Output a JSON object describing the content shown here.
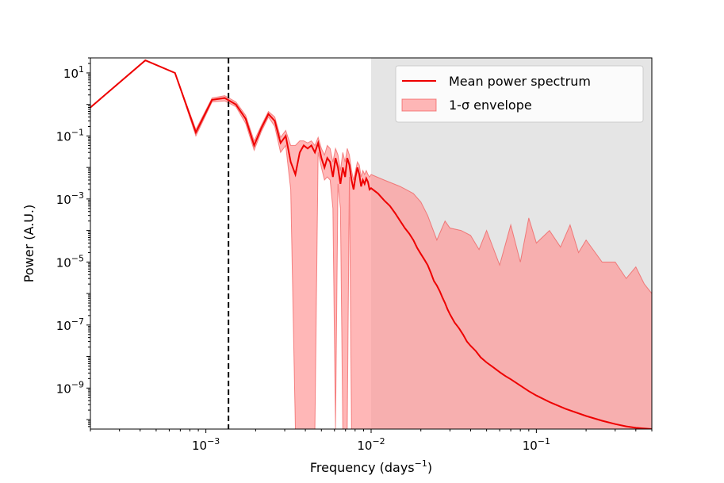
{
  "chart_data": {
    "type": "line",
    "xlabel": "Frequency (days",
    "xlabel_sup": "−1",
    "xlabel_end": ")",
    "ylabel": "Power (A.U.)",
    "xscale": "log",
    "yscale": "log",
    "xlim": [
      0.0002,
      0.5
    ],
    "ylim": [
      5e-11,
      30
    ],
    "grid": false,
    "legend_position": "top-right",
    "x_ticks": [
      {
        "value": 0.001,
        "base": "10",
        "exp": "−3"
      },
      {
        "value": 0.01,
        "base": "10",
        "exp": "−2"
      },
      {
        "value": 0.1,
        "base": "10",
        "exp": "−1"
      }
    ],
    "y_ticks": [
      {
        "value": 10,
        "base": "10",
        "exp": "1"
      },
      {
        "value": 0.1,
        "base": "10",
        "exp": "−1"
      },
      {
        "value": 0.001,
        "base": "10",
        "exp": "−3"
      },
      {
        "value": 1e-05,
        "base": "10",
        "exp": "−5"
      },
      {
        "value": 1e-07,
        "base": "10",
        "exp": "−7"
      },
      {
        "value": 1e-09,
        "base": "10",
        "exp": "−9"
      }
    ],
    "vline": {
      "x": 0.00137,
      "style": "dashed",
      "color": "#000000"
    },
    "shaded_region": {
      "x_start": 0.01,
      "x_end": 0.5,
      "color": "#e5e5e5"
    },
    "series": [
      {
        "name": "Mean power spectrum",
        "color": "#ee0000",
        "x": [
          0.0002,
          0.00043,
          0.00065,
          0.00087,
          0.00109,
          0.0013,
          0.00152,
          0.00174,
          0.00196,
          0.00217,
          0.00239,
          0.00261,
          0.00283,
          0.00304,
          0.00326,
          0.00348,
          0.0037,
          0.00391,
          0.00413,
          0.00435,
          0.00457,
          0.00478,
          0.005,
          0.00522,
          0.00543,
          0.00565,
          0.00587,
          0.00609,
          0.0063,
          0.00652,
          0.00674,
          0.00696,
          0.00717,
          0.00739,
          0.00761,
          0.00783,
          0.00804,
          0.00826,
          0.00848,
          0.0087,
          0.00891,
          0.00913,
          0.00935,
          0.00957,
          0.00978,
          0.01,
          0.011,
          0.012,
          0.013,
          0.014,
          0.015,
          0.016,
          0.017,
          0.018,
          0.019,
          0.02,
          0.021,
          0.022,
          0.023,
          0.024,
          0.025,
          0.026,
          0.027,
          0.028,
          0.029,
          0.03,
          0.032,
          0.034,
          0.036,
          0.038,
          0.04,
          0.043,
          0.046,
          0.05,
          0.055,
          0.06,
          0.065,
          0.07,
          0.08,
          0.09,
          0.1,
          0.12,
          0.15,
          0.2,
          0.25,
          0.3,
          0.35,
          0.4,
          0.45,
          0.5
        ],
        "y": [
          0.8,
          25,
          10,
          0.13,
          1.4,
          1.6,
          1.0,
          0.35,
          0.05,
          0.18,
          0.5,
          0.3,
          0.06,
          0.1,
          0.015,
          0.006,
          0.03,
          0.05,
          0.04,
          0.05,
          0.03,
          0.06,
          0.02,
          0.01,
          0.02,
          0.015,
          0.005,
          0.02,
          0.01,
          0.003,
          0.01,
          0.005,
          0.02,
          0.012,
          0.004,
          0.002,
          0.005,
          0.01,
          0.006,
          0.0025,
          0.004,
          0.003,
          0.0045,
          0.0035,
          0.002,
          0.0022,
          0.0015,
          0.0009,
          0.0006,
          0.00035,
          0.0002,
          0.00012,
          8e-05,
          5e-05,
          2.8e-05,
          1.8e-05,
          1.2e-05,
          8e-06,
          4.5e-06,
          2.5e-06,
          1.8e-06,
          1.2e-06,
          7.5e-07,
          5e-07,
          3.2e-07,
          2.2e-07,
          1.2e-07,
          8e-08,
          5e-08,
          3e-08,
          2.2e-08,
          1.5e-08,
          9.5e-09,
          6.5e-09,
          4.5e-09,
          3.2e-09,
          2.4e-09,
          1.9e-09,
          1.2e-09,
          8e-10,
          5.8e-10,
          3.6e-10,
          2.2e-10,
          1.3e-10,
          9.2e-11,
          7.2e-11,
          6.1e-11,
          5.5e-11,
          5.2e-11,
          5e-11
        ]
      },
      {
        "name": "1-σ envelope",
        "color": "#ff9999",
        "type": "area",
        "x": [
          0.0002,
          0.00043,
          0.00065,
          0.00087,
          0.00109,
          0.0013,
          0.00152,
          0.00174,
          0.00196,
          0.00217,
          0.00239,
          0.00261,
          0.00283,
          0.00304,
          0.00326,
          0.00348,
          0.0037,
          0.00391,
          0.00413,
          0.00435,
          0.00457,
          0.00478,
          0.005,
          0.00522,
          0.00543,
          0.00565,
          0.00587,
          0.00609,
          0.0063,
          0.00652,
          0.00674,
          0.00696,
          0.00717,
          0.00739,
          0.00761,
          0.00783,
          0.00804,
          0.00826,
          0.00848,
          0.0087,
          0.00891,
          0.00913,
          0.00935,
          0.00957,
          0.00978,
          0.01,
          0.012,
          0.015,
          0.018,
          0.02,
          0.022,
          0.025,
          0.028,
          0.03,
          0.035,
          0.04,
          0.045,
          0.05,
          0.06,
          0.07,
          0.08,
          0.09,
          0.1,
          0.12,
          0.14,
          0.16,
          0.18,
          0.2,
          0.25,
          0.3,
          0.35,
          0.4,
          0.45,
          0.5
        ],
        "upper": [
          0.8,
          25,
          10,
          0.16,
          1.6,
          1.9,
          1.2,
          0.45,
          0.07,
          0.22,
          0.6,
          0.4,
          0.09,
          0.15,
          0.05,
          0.05,
          0.07,
          0.07,
          0.06,
          0.07,
          0.05,
          0.09,
          0.04,
          0.025,
          0.05,
          0.04,
          0.015,
          0.04,
          0.025,
          0.008,
          0.03,
          0.015,
          0.04,
          0.025,
          0.008,
          0.004,
          0.008,
          0.015,
          0.012,
          0.005,
          0.008,
          0.006,
          0.008,
          0.006,
          0.005,
          0.006,
          0.004,
          0.0025,
          0.0015,
          0.0008,
          0.0003,
          5e-05,
          0.0002,
          0.00012,
          0.0001,
          7e-05,
          2.5e-05,
          0.0001,
          8e-06,
          0.00015,
          1e-05,
          0.00025,
          4e-05,
          0.0001,
          3e-05,
          0.00015,
          2e-05,
          5e-05,
          1e-05,
          1e-05,
          3e-06,
          7e-06,
          2e-06,
          1e-06
        ],
        "lower": [
          0.8,
          25,
          10,
          0.1,
          1.2,
          1.3,
          0.85,
          0.25,
          0.035,
          0.14,
          0.4,
          0.2,
          0.03,
          0.05,
          0.002,
          5e-11,
          5e-11,
          5e-11,
          5e-11,
          5e-11,
          5e-11,
          0.03,
          0.01,
          0.004,
          0.005,
          0.004,
          0.0005,
          5e-11,
          0.003,
          0.0005,
          5e-11,
          5e-11,
          5e-11,
          0.005,
          5e-11,
          5e-11,
          5e-11,
          5e-11,
          5e-11,
          5e-11,
          5e-11,
          5e-11,
          5e-11,
          5e-11,
          5e-11,
          5e-11,
          5e-11,
          5e-11,
          5e-11,
          5e-11,
          5e-11,
          5e-11,
          5e-11,
          5e-11,
          5e-11,
          5e-11,
          5e-11,
          5e-11,
          5e-11,
          5e-11,
          5e-11,
          5e-11,
          5e-11,
          5e-11,
          5e-11,
          5e-11,
          5e-11,
          5e-11,
          5e-11,
          5e-11,
          5e-11,
          5e-11,
          5e-11,
          5e-11
        ]
      }
    ]
  }
}
